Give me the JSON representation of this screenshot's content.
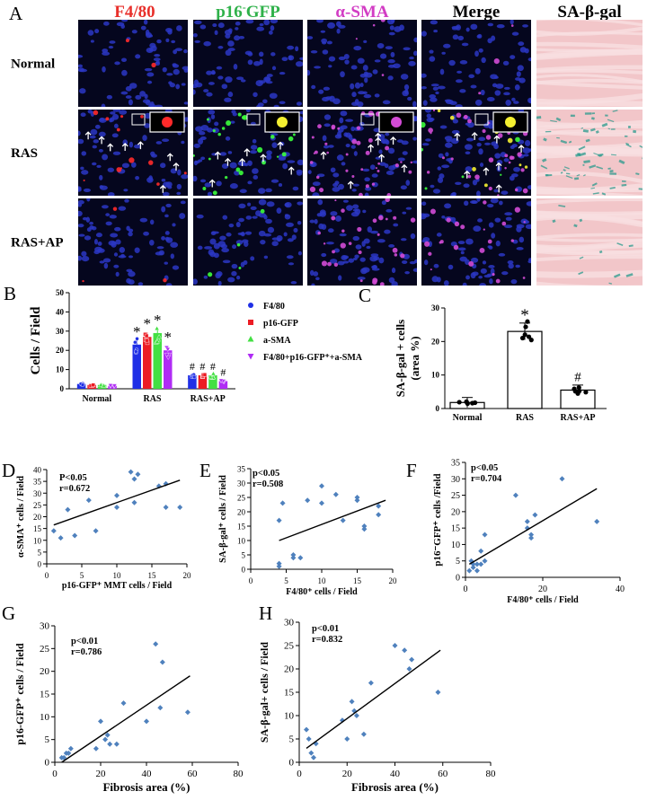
{
  "figure": {
    "panel_letters": [
      "A",
      "B",
      "C",
      "D",
      "E",
      "F",
      "G",
      "H"
    ],
    "panel_a": {
      "columns": [
        {
          "label": "F4/80",
          "color": "#e8302b"
        },
        {
          "label": "p16-GFP",
          "sup": "-",
          "color": "#2fb14a"
        },
        {
          "label": "α-SMA",
          "color": "#d23cc4"
        },
        {
          "label": "Merge",
          "color": "#000000"
        },
        {
          "label": "SA-β-gal",
          "color": "#000000"
        }
      ],
      "rows": [
        "Normal",
        "RAS",
        "RAS+AP"
      ]
    }
  },
  "colors": {
    "nuclei": "#2c37c4",
    "f480": "#ff2a2a",
    "p16": "#3cff3c",
    "asma": "#d34bd6",
    "merge_yellow": "#f4f030",
    "tissue_pink": "#f2c6c9",
    "senescent_blue": "#2a9a8c",
    "scatter_point": "#4f81bd",
    "series_f480": "#1f2fe6",
    "series_p16": "#ec1c24",
    "series_asma": "#43e043",
    "series_merge": "#b02cf5"
  },
  "chart_data": [
    {
      "panel": "B",
      "type": "bar",
      "ylabel": "Cells / Field",
      "ylim": [
        0,
        50
      ],
      "yticks": [
        0,
        10,
        20,
        30,
        40,
        50
      ],
      "categories": [
        "Normal",
        "RAS",
        "RAS+AP"
      ],
      "series": [
        {
          "name": "F4/80",
          "values": [
            2.5,
            23,
            7
          ]
        },
        {
          "name": "p16-GFP",
          "values": [
            2.0,
            27,
            7
          ]
        },
        {
          "name": "a-SMA",
          "values": [
            2.0,
            29,
            7
          ]
        },
        {
          "name": "F4/80+p16-GFP⁺+a-SMA",
          "values": [
            1.5,
            20,
            4
          ]
        }
      ],
      "annotations": [
        {
          "category": "RAS",
          "series": 0,
          "text": "*"
        },
        {
          "category": "RAS",
          "series": 1,
          "text": "*"
        },
        {
          "category": "RAS",
          "series": 2,
          "text": "*"
        },
        {
          "category": "RAS",
          "series": 3,
          "text": "*"
        },
        {
          "category": "RAS+AP",
          "series": 0,
          "text": "#"
        },
        {
          "category": "RAS+AP",
          "series": 1,
          "text": "#"
        },
        {
          "category": "RAS+AP",
          "series": 2,
          "text": "#"
        },
        {
          "category": "RAS+AP",
          "series": 3,
          "text": "#"
        }
      ],
      "legend_position": "right"
    },
    {
      "panel": "C",
      "type": "bar",
      "ylabel": "SA-β-gal + cells",
      "ylabel2": "(area %)",
      "ylim": [
        0,
        30
      ],
      "yticks": [
        0,
        10,
        20,
        30
      ],
      "categories": [
        "Normal",
        "RAS",
        "RAS+AP"
      ],
      "values": [
        1.8,
        23,
        5.5
      ],
      "annotations": [
        {
          "category": "RAS",
          "text": "*"
        },
        {
          "category": "RAS+AP",
          "text": "#"
        }
      ]
    },
    {
      "panel": "D",
      "type": "scatter",
      "xlabel": "p16-GFP⁺ MMT cells / Field",
      "ylabel": "α-SMA⁺ cells / Field",
      "xlim": [
        0,
        20
      ],
      "ylim": [
        0,
        40
      ],
      "xticks": [
        0,
        5,
        10,
        15,
        20
      ],
      "yticks": [
        0,
        5,
        10,
        15,
        20,
        25,
        30,
        35,
        40
      ],
      "stats": [
        "P<0.05",
        "r=0.672"
      ],
      "x": [
        1,
        2,
        3,
        4,
        6,
        7,
        10,
        10,
        12,
        12.5,
        12.5,
        13,
        16,
        17,
        17,
        19
      ],
      "y": [
        14,
        11,
        23,
        12,
        27,
        14,
        24,
        29,
        39,
        26,
        36,
        38,
        33,
        24,
        34,
        24
      ],
      "trend": [
        [
          1,
          16.5
        ],
        [
          19,
          35.5
        ]
      ]
    },
    {
      "panel": "E",
      "type": "scatter",
      "xlabel": "F4/80⁺ cells / Field",
      "ylabel": "SA-β-gal⁺ cells / Field",
      "xlim": [
        0,
        20
      ],
      "ylim": [
        0,
        35
      ],
      "xticks": [
        0,
        5,
        10,
        15,
        20
      ],
      "yticks": [
        0,
        5,
        10,
        15,
        20,
        25,
        30,
        35
      ],
      "stats": [
        "p<0.05",
        "r=0.508"
      ],
      "x": [
        4,
        4,
        4,
        4.5,
        6,
        6,
        7,
        8,
        10,
        10,
        12,
        13,
        15,
        15,
        16,
        16,
        18,
        18
      ],
      "y": [
        2,
        1,
        17,
        23,
        5,
        4,
        4,
        24,
        29,
        23,
        26,
        17,
        25,
        24,
        15,
        14,
        22,
        19
      ],
      "trend": [
        [
          4,
          10
        ],
        [
          19,
          24
        ]
      ]
    },
    {
      "panel": "F",
      "type": "scatter",
      "xlabel": "F4/80⁺ cells / Field",
      "ylabel": "p16⁻GFP⁺ cells /Field",
      "xlim": [
        0,
        40
      ],
      "ylim": [
        0,
        35
      ],
      "xticks": [
        0,
        20,
        40
      ],
      "yticks": [
        0,
        5,
        10,
        15,
        20,
        25,
        30,
        35
      ],
      "stats": [
        "p<0.05",
        "r=0.704"
      ],
      "x": [
        1,
        1.5,
        2,
        2,
        3,
        3,
        4,
        4,
        5,
        5,
        13,
        16,
        16,
        17,
        17,
        18,
        25,
        34
      ],
      "y": [
        2,
        5,
        3,
        4,
        4,
        2,
        8,
        4,
        13,
        5,
        25,
        17,
        15,
        13,
        12,
        19,
        30,
        17
      ],
      "trend": [
        [
          1,
          4
        ],
        [
          34,
          27
        ]
      ]
    },
    {
      "panel": "G",
      "type": "scatter",
      "xlabel": "Fibrosis area (%)",
      "ylabel": "p16-GFP⁺ cells / Field",
      "xlim": [
        0,
        80
      ],
      "ylim": [
        0,
        30
      ],
      "xticks": [
        0,
        20,
        40,
        60,
        80
      ],
      "yticks": [
        0,
        5,
        10,
        15,
        20,
        25,
        30
      ],
      "stats": [
        "p<0.01",
        "r=0.786"
      ],
      "x": [
        3,
        4,
        5,
        6,
        7,
        18,
        20,
        22,
        23,
        24,
        27,
        30,
        40,
        44,
        46,
        47,
        58
      ],
      "y": [
        1,
        1,
        2,
        2,
        3,
        3,
        9,
        5,
        6,
        4,
        4,
        13,
        9,
        26,
        12,
        22,
        11
      ],
      "trend": [
        [
          3,
          0
        ],
        [
          59,
          19
        ]
      ]
    },
    {
      "panel": "H",
      "type": "scatter",
      "xlabel": "Fibrosis area (%)",
      "ylabel": "SA-β-gal+ cells / Field",
      "xlim": [
        0,
        80
      ],
      "ylim": [
        0,
        30
      ],
      "xticks": [
        0,
        20,
        40,
        60,
        80
      ],
      "yticks": [
        0,
        5,
        10,
        15,
        20,
        25,
        30
      ],
      "stats": [
        "p<0.01",
        "r=0.832"
      ],
      "x": [
        3,
        4,
        5,
        6,
        7,
        18,
        20,
        22,
        23,
        24,
        27,
        30,
        40,
        44,
        46,
        47,
        58
      ],
      "y": [
        7,
        5,
        2,
        1,
        4,
        9,
        5,
        13,
        11,
        10,
        6,
        17,
        25,
        24,
        20,
        22,
        15
      ],
      "trend": [
        [
          3,
          3
        ],
        [
          59,
          24
        ]
      ]
    }
  ]
}
